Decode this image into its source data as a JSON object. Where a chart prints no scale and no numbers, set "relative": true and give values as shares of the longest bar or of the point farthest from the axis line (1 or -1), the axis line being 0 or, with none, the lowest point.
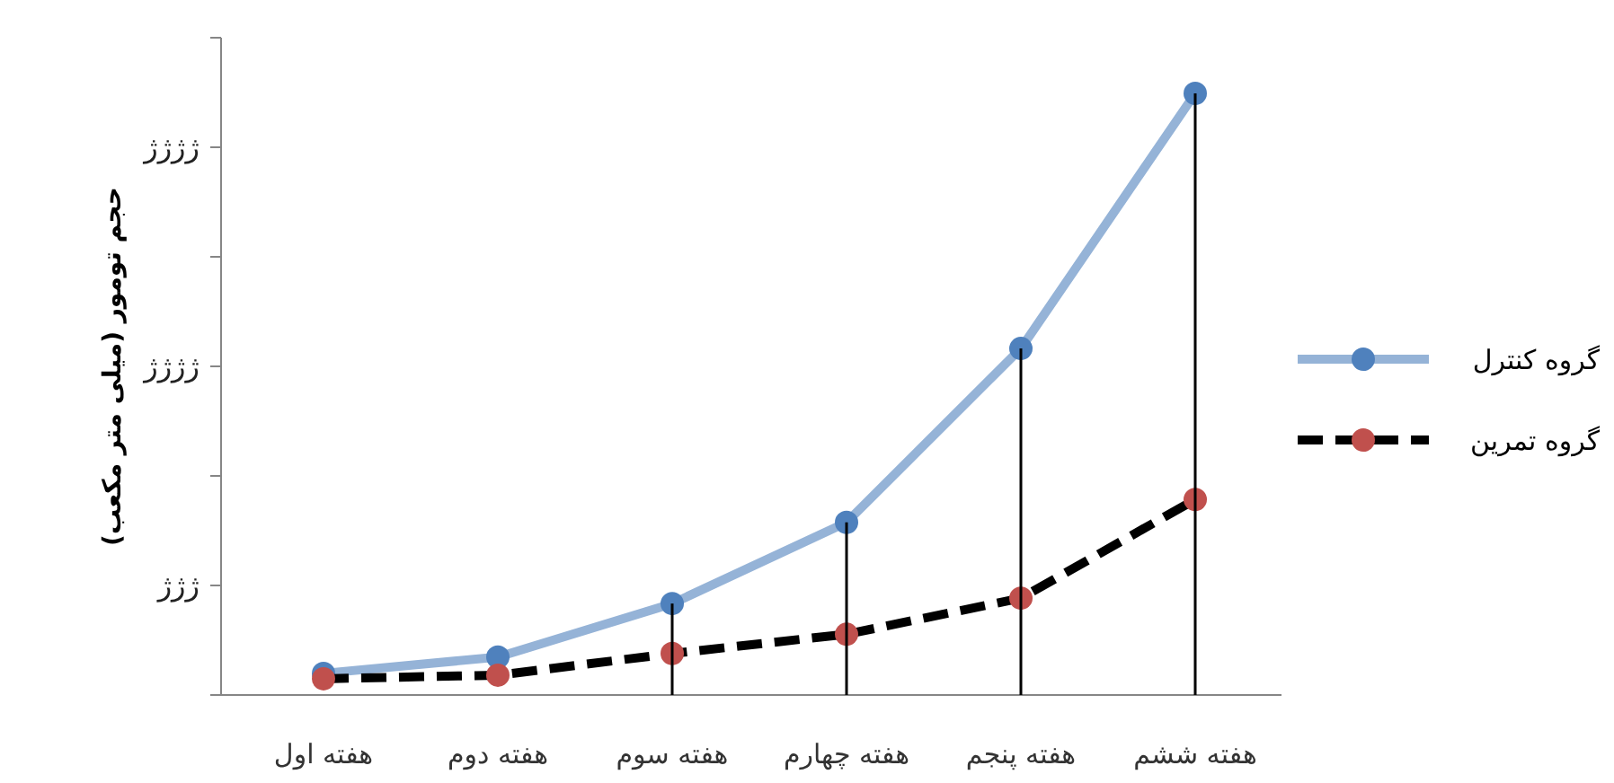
{
  "chart_data": {
    "type": "line",
    "relative": true,
    "ylabel": "حجم تومور (میلی متر مکعب)",
    "categories": [
      "هفته اول",
      "هفته دوم",
      "هفته سوم",
      "هفته چهارم",
      "هفته پنجم",
      "هفته ششم"
    ],
    "series": [
      {
        "name": "گروه کنترل",
        "color": "#95b3d7",
        "line_style": "solid",
        "values": [
          0.036,
          0.063,
          0.152,
          0.287,
          0.576,
          1
        ]
      },
      {
        "type": "bar",
        "color": "#000000",
        "values": [
          null,
          null,
          0.152,
          0.287,
          0.576,
          1
        ]
      },
      {
        "name": "گروه تمرین",
        "color": "#000000",
        "line_style": "dashed",
        "values": [
          0.027,
          0.033,
          0.069,
          0.101,
          0.161,
          0.325
        ]
      }
    ],
    "marker": "circle",
    "legend": "right",
    "grid": false,
    "annotations": [
      "ژژژ",
      "ژژژژ",
      "ژژژژ"
    ]
  }
}
